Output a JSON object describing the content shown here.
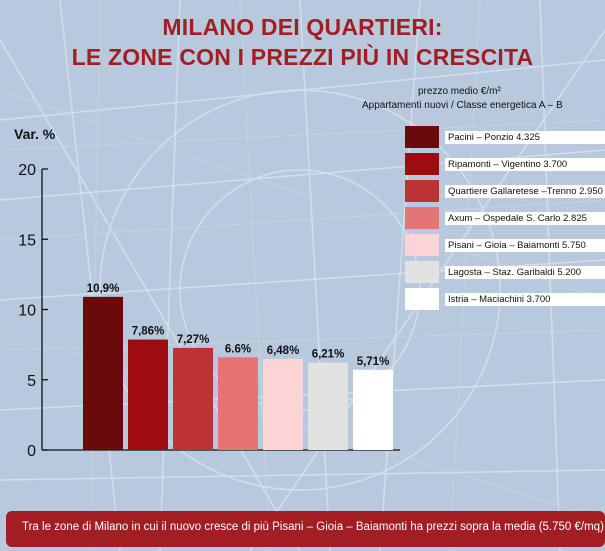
{
  "title_line1": "MILANO DEI QUARTIERI:",
  "title_line2": "LE ZONE CON I PREZZI PIÙ IN CRESCITA",
  "legend_header_1": "prezzo medio €/m²",
  "legend_header_2": "Appartamenti nuovi / Classe energetica A – B",
  "footer": "Tra le zone di Milano in cui il nuovo cresce di più Pisani – Gioia – Baiamonti ha prezzi sopra la media (5.750  €/mq)",
  "chart_data": {
    "type": "bar",
    "ylabel": "Var. %",
    "ylim": [
      0,
      20
    ],
    "yticks": [
      0,
      5,
      10,
      15,
      20
    ],
    "grid": false,
    "legend_position": "top-right",
    "categories": [
      "Pacini – Ponzio 4.325",
      "Ripamonti – Vigentino 3.700",
      "Quartiere Gallaretese –Trenno 2.950",
      "Axum – Ospedale S. Carlo  2.825",
      "Pisani – Gioia – Baiamonti  5.750",
      "Lagosta – Staz. Garibaldi  5.200",
      "Istria – Maciachini  3.700"
    ],
    "values": [
      10.9,
      7.86,
      7.27,
      6.6,
      6.48,
      6.21,
      5.71
    ],
    "data_labels": [
      "10,9%",
      "7,86%",
      "7,27%",
      "6.6%",
      "6,48%",
      "6,21%",
      "5,71%"
    ],
    "colors": [
      "#6b0a0a",
      "#9e0b10",
      "#bd3233",
      "#e67474",
      "#fcd4d6",
      "#e2e2e3",
      "#ffffff"
    ]
  }
}
